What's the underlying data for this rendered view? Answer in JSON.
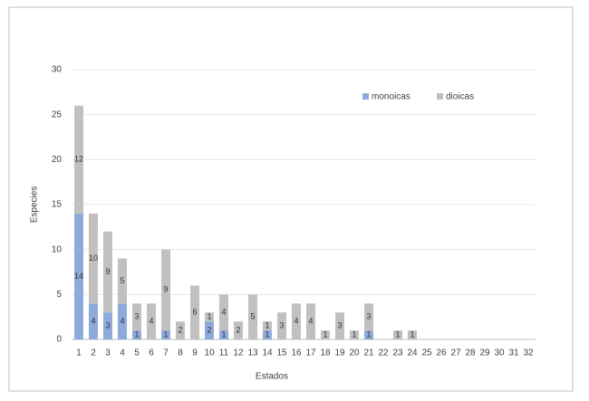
{
  "chart_data": {
    "type": "stacked-bar",
    "x_label": "Estados",
    "y_label": "Especies",
    "categories": [
      "1",
      "2",
      "3",
      "4",
      "5",
      "6",
      "7",
      "8",
      "9",
      "10",
      "11",
      "12",
      "13",
      "14",
      "15",
      "16",
      "17",
      "18",
      "19",
      "20",
      "21",
      "22",
      "23",
      "24",
      "25",
      "26",
      "27",
      "28",
      "29",
      "30",
      "31",
      "32"
    ],
    "series": [
      {
        "name": "monoicas",
        "color": "#8eaadb",
        "values": [
          14,
          4,
          3,
          4,
          1,
          null,
          1,
          null,
          null,
          2,
          1,
          null,
          null,
          1,
          null,
          null,
          null,
          null,
          null,
          null,
          1,
          null,
          null,
          null,
          null,
          null,
          null,
          null,
          null,
          null,
          null,
          null
        ]
      },
      {
        "name": "dioicas",
        "color": "#c0c0c0",
        "values": [
          12,
          10,
          9,
          5,
          3,
          4,
          9,
          2,
          6,
          1,
          4,
          2,
          5,
          1,
          3,
          4,
          4,
          1,
          3,
          1,
          3,
          null,
          1,
          1,
          null,
          null,
          null,
          null,
          null,
          null,
          null,
          null
        ]
      }
    ],
    "ylim": [
      0,
      30
    ],
    "yticks": [
      0,
      5,
      10,
      15,
      20,
      25,
      30
    ],
    "grid": true,
    "legend": "top-right"
  }
}
